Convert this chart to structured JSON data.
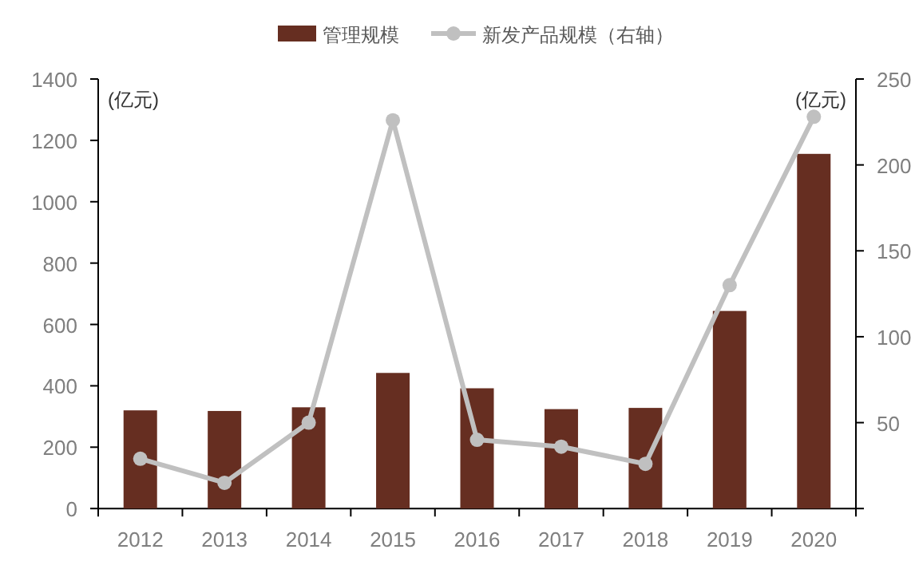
{
  "chart_data": {
    "type": "bar",
    "categories": [
      "2012",
      "2013",
      "2014",
      "2015",
      "2016",
      "2017",
      "2018",
      "2019",
      "2020"
    ],
    "series": [
      {
        "name": "管理规模",
        "color": "#662e21",
        "values": [
          320,
          318,
          330,
          442,
          392,
          324,
          328,
          644,
          1156
        ]
      },
      {
        "name": "新发产品规模（右轴）",
        "type": "line",
        "axis": "y2",
        "color": "#c0c0c0",
        "marker": "circle",
        "values": [
          29,
          15,
          50,
          226,
          40,
          36,
          26,
          130,
          228
        ]
      }
    ],
    "ylim": [
      0,
      1400
    ],
    "yticks": [
      0,
      200,
      400,
      600,
      800,
      1000,
      1200,
      1400
    ],
    "y2lim": [
      0,
      250
    ],
    "y2ticks": [
      {
        "value": 0,
        "label": null
      },
      50,
      100,
      150,
      200,
      250
    ],
    "annotations": [
      "(亿元)",
      "(亿元)"
    ],
    "legend": "top",
    "grid": false
  }
}
